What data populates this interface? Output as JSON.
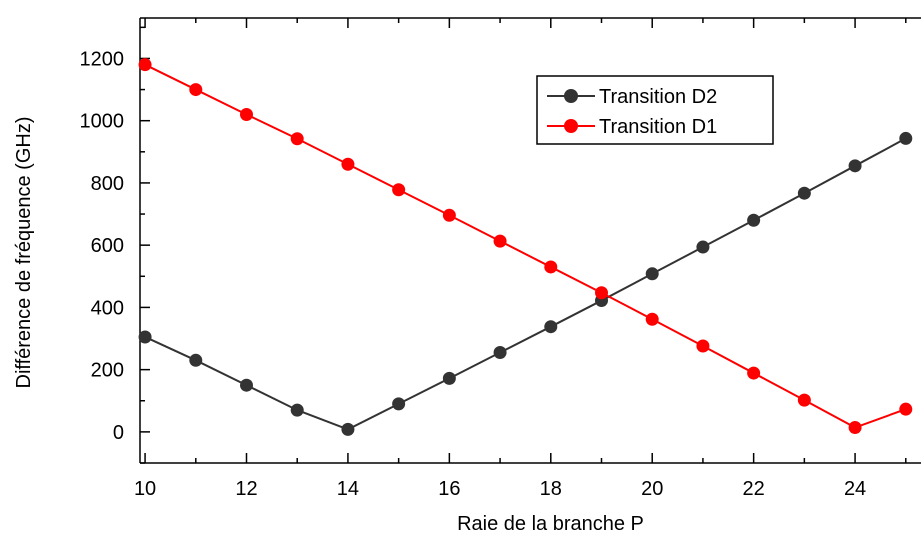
{
  "chart_data": {
    "type": "line",
    "xlabel": "Raie de la branche P",
    "ylabel": "Différence de fréquence (GHz)",
    "xlim": [
      9.9,
      25.3
    ],
    "ylim": [
      -100,
      1330
    ],
    "x_ticks": [
      10,
      12,
      14,
      16,
      18,
      20,
      22,
      24
    ],
    "y_ticks": [
      0,
      200,
      400,
      600,
      800,
      1000,
      1200
    ],
    "x_tick_labels": [
      "10",
      "12",
      "14",
      "16",
      "18",
      "20",
      "22",
      "24"
    ],
    "y_tick_labels": [
      "0",
      "200",
      "400",
      "600",
      "800",
      "1000",
      "1200"
    ],
    "legend_position": "top-right",
    "x": [
      10,
      11,
      12,
      13,
      14,
      15,
      16,
      17,
      18,
      19,
      20,
      21,
      22,
      23,
      24,
      25
    ],
    "series": [
      {
        "name": "Transition D2",
        "color": "#333333",
        "values": [
          305,
          230,
          150,
          70,
          8,
          90,
          172,
          255,
          338,
          422,
          508,
          594,
          680,
          767,
          855,
          943
        ]
      },
      {
        "name": "Transition D1",
        "color": "#ff0000",
        "values": [
          1180,
          1100,
          1020,
          942,
          860,
          778,
          696,
          613,
          530,
          447,
          362,
          276,
          189,
          102,
          14,
          73
        ]
      }
    ]
  }
}
